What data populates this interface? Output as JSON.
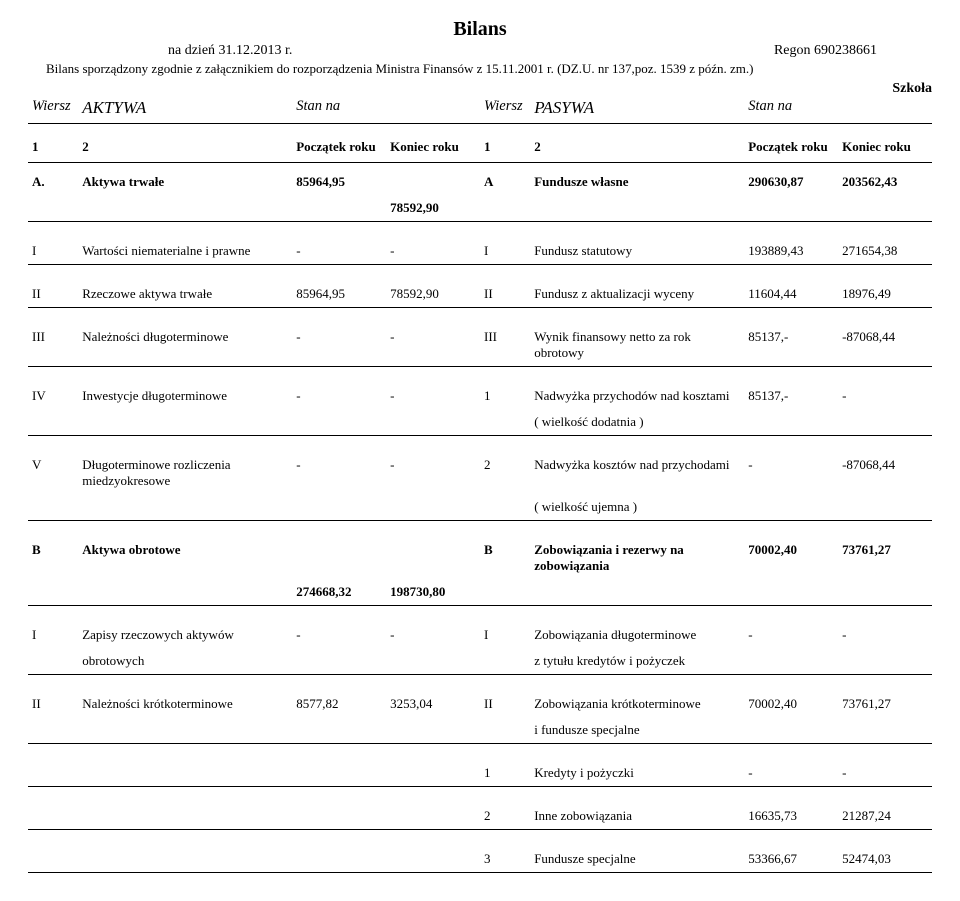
{
  "header": {
    "title": "Bilans",
    "date_line": "na dzień 31.12.2013 r.",
    "regon": "Regon 690238661",
    "note": "Bilans sporządzony zgodnie z załącznikiem do rozporządzenia Ministra Finansów z 15.11.2001 r. (DZ.U. nr 137,poz. 1539 z późn. zm.)",
    "szkola": "Szkoła"
  },
  "cols": {
    "wiersz": "Wiersz",
    "aktywa": "AKTYWA",
    "stan": "Stan na",
    "pasywa": "PASYWA",
    "one": "1",
    "two": "2",
    "pocz": "Początek roku",
    "kon": "Koniec roku"
  },
  "rows": [
    {
      "lw": "A.",
      "ln": "Aktywa trwałe",
      "lp": "85964,95",
      "lk": "78592,90",
      "rw": "A",
      "rn": "Fundusze własne",
      "rp": "290630,87",
      "rk": "203562,43",
      "bold": true,
      "lk_shift": true
    },
    {
      "lw": "I",
      "ln": "Wartości niematerialne i prawne",
      "lp": "-",
      "lk": "-",
      "rw": "I",
      "rn": "Fundusz statutowy",
      "rp": "193889,43",
      "rk": "271654,38"
    },
    {
      "lw": "II",
      "ln": "Rzeczowe aktywa trwałe",
      "lp": "85964,95",
      "lk": "78592,90",
      "rw": "II",
      "rn": "Fundusz z aktualizacji wyceny",
      "rp": "11604,44",
      "rk": "18976,49"
    },
    {
      "lw": "III",
      "ln": "Należności długoterminowe",
      "lp": "-",
      "lk": "-",
      "rw": "III",
      "rn": "Wynik finansowy netto za rok obrotowy",
      "rp": "85137,-",
      "rk": "-87068,44"
    },
    {
      "lw": "IV",
      "ln": "Inwestycje długoterminowe",
      "lp": "-",
      "lk": "-",
      "rw": "1",
      "rn": "Nadwyżka przychodów nad kosztami",
      "rp": "85137,-",
      "rk": "-",
      "rn2": "( wielkość dodatnia )"
    },
    {
      "lw": "V",
      "ln": "Długoterminowe rozliczenia miedzyokresowe",
      "lp": "-",
      "lk": "-",
      "rw": "2",
      "rn": "Nadwyżka kosztów nad przychodami",
      "rp": "-",
      "rk": "-87068,44",
      "rn2": "( wielkość ujemna )"
    },
    {
      "lw": "B",
      "ln": "Aktywa obrotowe",
      "lp": "274668,32",
      "lk": "198730,80",
      "rw": "B",
      "rn": "Zobowiązania i rezerwy na zobowiązania",
      "rp": "70002,40",
      "rk": "73761,27",
      "bold": true,
      "lp_shift": true,
      "lk_shift": true
    },
    {
      "lw": "I",
      "ln": "Zapisy rzeczowych aktywów",
      "lp": "-",
      "lk": "-",
      "rw": "I",
      "rn": "Zobowiązania długoterminowe",
      "rp": "-",
      "rk": "-",
      "ln2": "obrotowych",
      "rn2": "z tytułu kredytów i pożyczek"
    },
    {
      "lw": "II",
      "ln": "Należności krótkoterminowe",
      "lp": "8577,82",
      "lk": "3253,04",
      "rw": "II",
      "rn": "Zobowiązania krótkoterminowe",
      "rp": "70002,40",
      "rk": "73761,27",
      "rn2": "i fundusze specjalne"
    },
    {
      "lw": "",
      "ln": "",
      "lp": "",
      "lk": "",
      "rw": "1",
      "rn": "Kredyty i pożyczki",
      "rp": "-",
      "rk": "-"
    },
    {
      "lw": "",
      "ln": "",
      "lp": "",
      "lk": "",
      "rw": "2",
      "rn": "Inne zobowiązania",
      "rp": "16635,73",
      "rk": "21287,24"
    },
    {
      "lw": "",
      "ln": "",
      "lp": "",
      "lk": "",
      "rw": "3",
      "rn": "Fundusze specjalne",
      "rp": "53366,67",
      "rk": "52474,03"
    }
  ]
}
